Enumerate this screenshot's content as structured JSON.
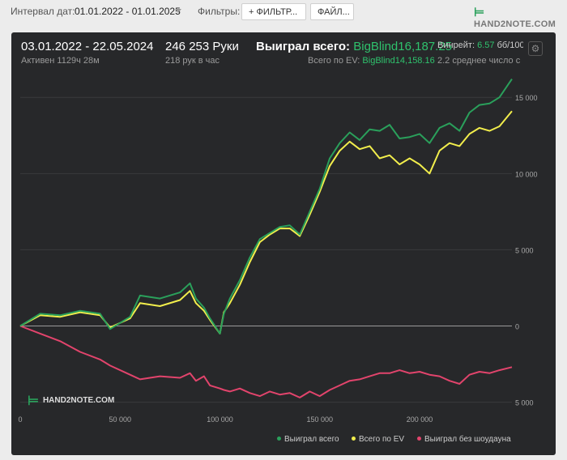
{
  "toolbar": {
    "interval_label": "Интервал дат:",
    "interval_value": "01.01.2022 - 01.01.2025",
    "filters_label": "Фильтры:",
    "filter_button": "+ ФИЛЬТР...",
    "file_button": "ФАЙЛ...",
    "logo_text": "HAND2NOTE.COM"
  },
  "summary": {
    "date_range": "03.01.2022 - 22.05.2024",
    "active": "Активен 1129ч 28м",
    "hands": "246 253 Руки",
    "hands_per_hour": "218 рук в час",
    "won_total_label": "Выиграл всего:",
    "won_total_value": "BigBlind16,187.25",
    "ev_total_label": "Всего по EV:",
    "ev_total_value": "BigBlind14,158.16",
    "winrate_label": "Винрейт:",
    "winrate_value": "6.57",
    "winrate_unit": "бб/100",
    "avg_text": "2.2 среднее число с"
  },
  "colors": {
    "won": "#2aa05b",
    "ev": "#f2ee4c",
    "no_showdown": "#e2446c",
    "panel_bg": "#27282a"
  },
  "chart_data": {
    "type": "line",
    "watermark": "HAND2NOTE.COM",
    "xlim": [
      0,
      246253
    ],
    "ylim": [
      -5500,
      16500
    ],
    "x_ticks": [
      0,
      50000,
      100000,
      150000,
      200000
    ],
    "x_tick_labels": [
      "0",
      "50 000",
      "100 000",
      "150 000",
      "200 000"
    ],
    "y_ticks": [
      15000,
      10000,
      5000,
      0,
      -5000
    ],
    "y_tick_labels": [
      "15 000",
      "10 000",
      "5 000",
      "0",
      "5 000"
    ],
    "x": [
      0,
      10000,
      20000,
      30000,
      40000,
      45000,
      55000,
      60000,
      70000,
      80000,
      85000,
      88000,
      92000,
      95000,
      100000,
      102000,
      105000,
      110000,
      115000,
      120000,
      125000,
      130000,
      135000,
      140000,
      145000,
      150000,
      155000,
      160000,
      165000,
      170000,
      175000,
      180000,
      185000,
      190000,
      195000,
      200000,
      205000,
      210000,
      215000,
      220000,
      225000,
      230000,
      235000,
      240000,
      246253
    ],
    "series": [
      {
        "name": "Выиграл всего",
        "values": [
          0,
          800,
          700,
          1000,
          800,
          -200,
          600,
          2000,
          1800,
          2200,
          2800,
          1800,
          1200,
          500,
          -500,
          800,
          1800,
          3000,
          4500,
          5700,
          6100,
          6500,
          6600,
          6000,
          7500,
          9000,
          11000,
          12000,
          12700,
          12200,
          12900,
          12800,
          13200,
          12300,
          12400,
          12600,
          12000,
          13000,
          13300,
          12800,
          14000,
          14500,
          14600,
          15000,
          16200
        ]
      },
      {
        "name": "Всего по EV",
        "values": [
          0,
          700,
          600,
          900,
          700,
          -100,
          500,
          1500,
          1300,
          1700,
          2300,
          1500,
          1000,
          400,
          -500,
          900,
          1500,
          2700,
          4200,
          5500,
          6000,
          6400,
          6400,
          5900,
          7300,
          8800,
          10500,
          11500,
          12100,
          11600,
          11800,
          11000,
          11200,
          10600,
          11000,
          10600,
          10000,
          11500,
          12000,
          11800,
          12600,
          13000,
          12800,
          13100,
          14100
        ]
      },
      {
        "name": "Выиграл без шоудауна",
        "values": [
          0,
          -500,
          -1000,
          -1700,
          -2200,
          -2600,
          -3200,
          -3500,
          -3300,
          -3400,
          -3100,
          -3600,
          -3300,
          -3900,
          -4100,
          -4200,
          -4300,
          -4100,
          -4400,
          -4600,
          -4300,
          -4500,
          -4400,
          -4700,
          -4300,
          -4600,
          -4200,
          -3900,
          -3600,
          -3500,
          -3300,
          -3100,
          -3100,
          -2900,
          -3100,
          -3000,
          -3200,
          -3300,
          -3600,
          -3800,
          -3200,
          -3000,
          -3100,
          -2900,
          -2700
        ]
      }
    ],
    "grid": true,
    "legend_position": "bottom-right"
  }
}
